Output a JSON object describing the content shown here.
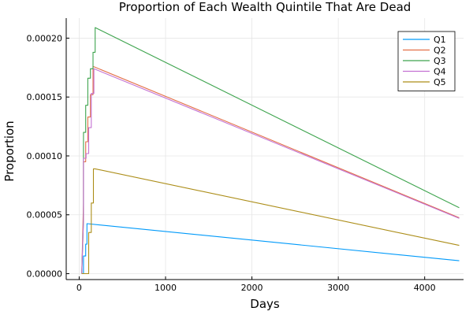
{
  "chart_data": {
    "type": "line",
    "title": "Proportion of Each Wealth Quintile That Are Dead",
    "xlabel": "Days",
    "ylabel": "Proportion",
    "xlim": [
      -150,
      4450
    ],
    "ylim": [
      -5e-06,
      0.000217
    ],
    "xticks": [
      0,
      1000,
      2000,
      3000,
      4000
    ],
    "xtick_labels": [
      "0",
      "1000",
      "2000",
      "3000",
      "4000"
    ],
    "yticks": [
      0,
      5e-05,
      0.0001,
      0.00015,
      0.0002
    ],
    "ytick_labels": [
      "0.00000",
      "0.00005",
      "0.00010",
      "0.00015",
      "0.00020"
    ],
    "grid": true,
    "legend_position": "top-right",
    "series": [
      {
        "name": "Q1",
        "color": "#009AFA",
        "x": [
          30,
          50,
          50,
          75,
          75,
          90,
          90,
          4400
        ],
        "y": [
          0,
          0,
          1.5e-05,
          1.5e-05,
          2.5e-05,
          2.5e-05,
          4.25e-05,
          1.1e-05
        ]
      },
      {
        "name": "Q2",
        "color": "#E36F47",
        "x": [
          30,
          50,
          50,
          75,
          75,
          100,
          100,
          130,
          130,
          160,
          160,
          4400
        ],
        "y": [
          0,
          6e-05,
          9.5e-05,
          9.5e-05,
          0.000112,
          0.000112,
          0.000133,
          0.000133,
          0.000152,
          0.000152,
          0.000176,
          4.75e-05
        ]
      },
      {
        "name": "Q3",
        "color": "#3EA44E",
        "x": [
          30,
          50,
          50,
          75,
          75,
          100,
          100,
          130,
          130,
          160,
          160,
          185,
          185,
          4400
        ],
        "y": [
          0,
          4.5e-05,
          0.00012,
          0.00012,
          0.000143,
          0.000143,
          0.000166,
          0.000166,
          0.000174,
          0.000174,
          0.000188,
          0.000188,
          0.000209,
          5.6e-05
        ]
      },
      {
        "name": "Q4",
        "color": "#C371D2",
        "x": [
          30,
          50,
          50,
          80,
          80,
          110,
          110,
          140,
          140,
          170,
          170,
          4400
        ],
        "y": [
          0,
          4.5e-05,
          9.8e-05,
          9.8e-05,
          0.000102,
          0.000102,
          0.000124,
          0.000124,
          0.000153,
          0.000153,
          0.000174,
          4.7e-05
        ]
      },
      {
        "name": "Q5",
        "color": "#AC8D18",
        "x": [
          30,
          110,
          110,
          140,
          140,
          165,
          165,
          185,
          185,
          4400
        ],
        "y": [
          0,
          0,
          3.5e-05,
          3.5e-05,
          6e-05,
          6e-05,
          8.9e-05,
          8.9e-05,
          8.9e-05,
          2.4e-05
        ]
      }
    ]
  }
}
